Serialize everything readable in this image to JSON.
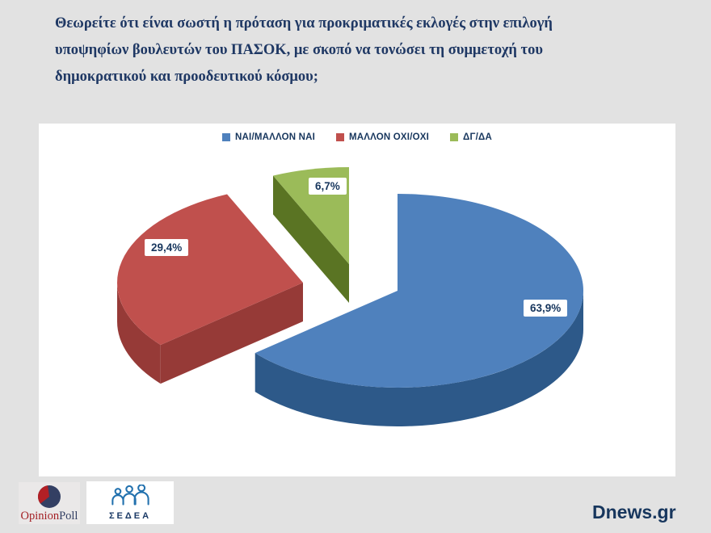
{
  "title": {
    "lines": [
      "Θεωρείτε ότι είναι σωστή η πρόταση για προκριματικές εκλογές στην επιλογή",
      "υποψηφίων βουλευτών του ΠΑΣΟΚ, με σκοπό να τονώσει τη συμμετοχή του",
      "δημοκρατικού και προοδευτικού κόσμου;"
    ]
  },
  "chart_data": {
    "type": "pie",
    "style": "3d-exploded",
    "labels": [
      "ΝΑΙ/ΜΑΛΛΟΝ ΝΑΙ",
      "ΜΑΛΛΟΝ ΟΧΙ/ΟΧΙ",
      "ΔΓ/ΔΑ"
    ],
    "values": [
      63.9,
      29.4,
      6.7
    ],
    "value_labels": [
      "63,9%",
      "29,4%",
      "6,7%"
    ],
    "colors_top": [
      "#4f81bd",
      "#c0504d",
      "#9bbb59"
    ],
    "colors_side": [
      "#2d5989",
      "#963a37",
      "#5a7423"
    ],
    "colors_edge_shadow": "#1d3b61",
    "legend_position": "top-center"
  },
  "footer": {
    "opinionpoll": {
      "part1": "Opinion",
      "part2": "Poll"
    },
    "sedea": {
      "label": "ΣΕΔΕΑ"
    },
    "site": "Dnews.gr"
  },
  "colors": {
    "background": "#e2e2e2",
    "panel": "#ffffff",
    "question_text": "#1f3864",
    "label_text": "#17365d",
    "opinion_red": "#a31f24",
    "opinion_navy": "#333f63",
    "sedea_blue": "#2271ae"
  }
}
